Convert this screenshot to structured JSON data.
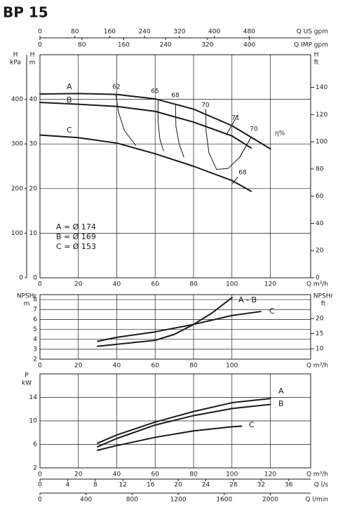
{
  "chart_data": [
    {
      "type": "line",
      "title": "BP 15",
      "color": "#1a1a1a",
      "grid": true,
      "xlim": [
        0,
        141
      ],
      "xticks": [
        0,
        20,
        40,
        60,
        80,
        100,
        120
      ],
      "xlabel": "Q m³/h",
      "x2": {
        "label": "Q US gpm",
        "lim": [
          0,
          621
        ],
        "ticks": [
          0,
          80,
          160,
          240,
          320,
          400,
          480
        ]
      },
      "x3": {
        "label": "Q IMP gpm",
        "lim": [
          0,
          517
        ],
        "ticks": [
          0,
          80,
          160,
          240,
          320,
          400
        ]
      },
      "ylabel": [
        "H",
        "m"
      ],
      "ylim": [
        0,
        50
      ],
      "yticks": [
        0,
        10,
        20,
        30,
        40
      ],
      "y3label": [
        "H",
        "kPa"
      ],
      "y3lim": [
        0,
        500
      ],
      "y3ticks": [
        0,
        100,
        200,
        300,
        400
      ],
      "y2label": [
        "H",
        "ft"
      ],
      "y2lim": [
        0,
        164
      ],
      "y2ticks": [
        0,
        20,
        40,
        60,
        80,
        100,
        120,
        140
      ],
      "series": [
        {
          "name": "A",
          "x": [
            0,
            20,
            40,
            60,
            80,
            100,
            120
          ],
          "values": [
            41.2,
            41.3,
            41.1,
            40.1,
            37.8,
            34.1,
            28.9
          ]
        },
        {
          "name": "B",
          "x": [
            0,
            20,
            40,
            60,
            80,
            100,
            110
          ],
          "values": [
            39.3,
            38.9,
            38.4,
            37.3,
            34.9,
            31.8,
            29.1
          ]
        },
        {
          "name": "C",
          "x": [
            0,
            20,
            40,
            60,
            80,
            100,
            110
          ],
          "values": [
            32.0,
            31.4,
            30.2,
            27.8,
            25.0,
            21.8,
            19.4
          ]
        }
      ],
      "efficiency_label": "η%",
      "efficiency_curves": [
        {
          "name": "62",
          "x": [
            39.5,
            41,
            44,
            50
          ],
          "values": [
            41.1,
            37,
            33,
            29.6
          ]
        },
        {
          "name": "65",
          "x": [
            61.5,
            61.5,
            62.5,
            64.4
          ],
          "values": [
            40,
            35,
            31,
            28.4
          ]
        },
        {
          "name": "68",
          "x": [
            70.6,
            70.8,
            72.5,
            75
          ],
          "values": [
            39,
            34,
            30,
            27
          ]
        },
        {
          "name": "70",
          "x": [
            86.4,
            86.5,
            88,
            92,
            98,
            104,
            110
          ],
          "values": [
            37.8,
            33,
            28,
            24.3,
            24.5,
            27,
            31.5
          ]
        },
        {
          "name": "71",
          "x": [
            97,
            103
          ],
          "values": [
            32,
            36.5
          ]
        },
        {
          "name": "70",
          "x": [
            104,
            110
          ],
          "values": [
            27,
            31.5
          ]
        },
        {
          "name": "68",
          "x": [
            100,
            103
          ],
          "values": [
            21,
            22.6
          ]
        }
      ],
      "annotations": [
        "A = Ø 174",
        "B = Ø 169",
        "C = Ø 153"
      ]
    },
    {
      "type": "line",
      "color": "#1a1a1a",
      "grid": true,
      "xlim": [
        0,
        141
      ],
      "xticks": [
        0,
        20,
        40,
        60,
        80,
        100
      ],
      "xlabel": "Q m³/h",
      "ylabel": [
        "NPSHr",
        "m"
      ],
      "ylim": [
        2,
        8.5
      ],
      "yticks": [
        2,
        3,
        4,
        5,
        6,
        7,
        8
      ],
      "y2label": [
        "NPSHr",
        "ft"
      ],
      "y2lim": [
        6.56,
        27.89
      ],
      "y2ticks": [
        10,
        15,
        20
      ],
      "series": [
        {
          "name": "A - B",
          "x": [
            30,
            60,
            70,
            80,
            90,
            100
          ],
          "values": [
            3.3,
            3.9,
            4.5,
            5.5,
            6.7,
            8.2
          ]
        },
        {
          "name": "C",
          "x": [
            30,
            40,
            60,
            80,
            100,
            115
          ],
          "values": [
            3.8,
            4.2,
            4.75,
            5.5,
            6.4,
            6.8
          ]
        }
      ]
    },
    {
      "type": "line",
      "color": "#1a1a1a",
      "grid": true,
      "xlim": [
        0,
        141
      ],
      "xticks": [
        0,
        20,
        40,
        60,
        80,
        100,
        120
      ],
      "xlabel": "Q m³/h",
      "x2": {
        "label": "Q l/s",
        "lim": [
          0,
          39.17
        ],
        "ticks": [
          0,
          4,
          8,
          12,
          16,
          20,
          24,
          28,
          32,
          36
        ]
      },
      "x3": {
        "label": "Q l/min",
        "lim": [
          0,
          2350
        ],
        "ticks": [
          0,
          400,
          800,
          1200,
          1600,
          2000
        ]
      },
      "ylabel": [
        "P",
        "kW"
      ],
      "ylim": [
        2,
        18
      ],
      "yticks": [
        2,
        6,
        10,
        14
      ],
      "series": [
        {
          "name": "A",
          "x": [
            30,
            40,
            60,
            80,
            100,
            120
          ],
          "values": [
            6.2,
            7.6,
            9.8,
            11.6,
            13.1,
            13.8
          ]
        },
        {
          "name": "B",
          "x": [
            30,
            40,
            60,
            80,
            100,
            120
          ],
          "values": [
            5.6,
            7.0,
            9.3,
            10.9,
            12.1,
            12.8
          ]
        },
        {
          "name": "C",
          "x": [
            30,
            40,
            60,
            80,
            100,
            105
          ],
          "values": [
            5.0,
            5.8,
            7.2,
            8.3,
            9.0,
            9.1
          ]
        }
      ]
    }
  ]
}
